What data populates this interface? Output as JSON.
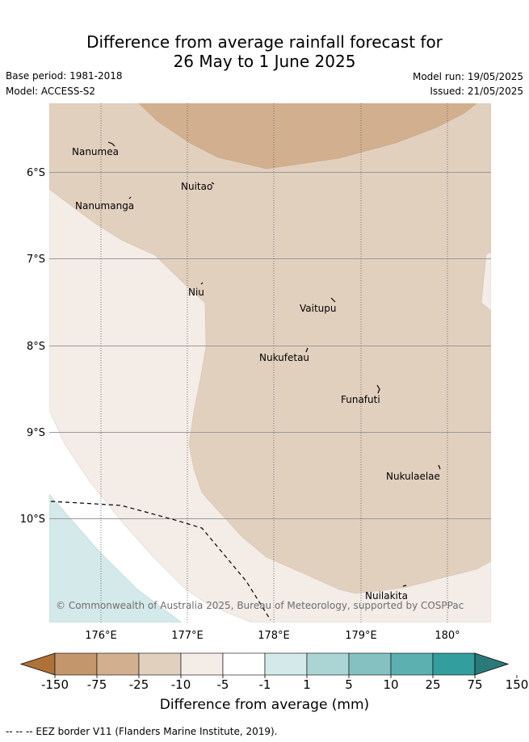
{
  "title": {
    "line1": "Difference from average rainfall forecast for",
    "line2": "26 May to 1 June 2025"
  },
  "meta": {
    "base_period": "Base period: 1981-2018",
    "model": "Model: ACCESS-S2",
    "model_run": "Model run: 19/05/2025",
    "issued": "Issued: 21/05/2025"
  },
  "map": {
    "lat_labels": [
      "6°S",
      "7°S",
      "8°S",
      "9°S",
      "10°S"
    ],
    "lon_labels": [
      "176°E",
      "177°E",
      "178°E",
      "179°E",
      "180°"
    ],
    "islands": [
      "Nanumea",
      "Nuitao",
      "Nanumanga",
      "Niu",
      "Vaitupu",
      "Nukufetau",
      "Funafuti",
      "Nukulaelae",
      "Nuilakita"
    ],
    "credit": "© Commonwealth of Australia 2025, Bureau of Meteorology, supported by COSPPac",
    "colors": {
      "-25 to -10": "#d2b08f",
      "-10 to -5": "#e2d0bf",
      "-5 to -1": "#f3ece7",
      "-1 to 1": "#ffffff",
      "1 to 5": "#d4e9e9"
    }
  },
  "colorbar": {
    "ticks": [
      "-150",
      "-75",
      "-25",
      "-10",
      "-5",
      "-1",
      "1",
      "5",
      "10",
      "25",
      "75",
      "150"
    ],
    "colors": [
      "#ae7238",
      "#c3976b",
      "#d2b08f",
      "#e2d0bf",
      "#f3ece7",
      "#ffffff",
      "#d4e9e9",
      "#abd5d5",
      "#86c1c1",
      "#5db0b0",
      "#339e9e",
      "#2a7a7a"
    ],
    "label": "Difference from average (mm)"
  },
  "footer": "-- -- -- EEZ border V11 (Flanders Marine Institute, 2019)."
}
